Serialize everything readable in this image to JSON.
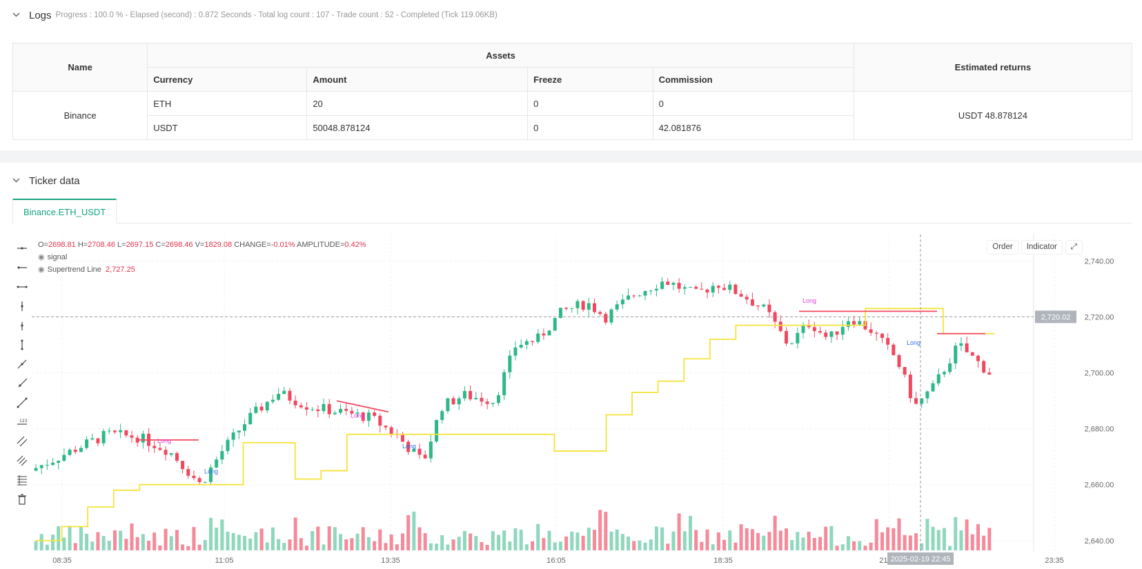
{
  "logs": {
    "title": "Logs",
    "meta": "Progress : 100.0 % - Elapsed (second) : 0.872  Seconds - Total log count : 107 - Trade count : 52 - Completed (Tick 119.06KB)"
  },
  "assets_table": {
    "headers": {
      "name": "Name",
      "assets": "Assets",
      "estimated": "Estimated returns",
      "currency": "Currency",
      "amount": "Amount",
      "freeze": "Freeze",
      "commission": "Commission"
    },
    "exchange": "Binance",
    "rows": [
      {
        "currency": "ETH",
        "amount": "20",
        "freeze": "0",
        "commission": "0"
      },
      {
        "currency": "USDT",
        "amount": "50048.878124",
        "freeze": "0",
        "commission": "42.081876"
      }
    ],
    "estimated_returns": "USDT 48.878124"
  },
  "ticker": {
    "title": "Ticker data",
    "tab": "Binance.ETH_USDT"
  },
  "chart": {
    "legend": {
      "ohlc_prefix": [
        "O=",
        "H=",
        "L=",
        "C=",
        "V=",
        "CHANGE=",
        "AMPLITUDE="
      ],
      "ohlc_values": [
        "2698.81",
        "2708.46",
        "2697.15",
        "2698.46",
        "1829.08",
        "-0.01%",
        "0.42%"
      ],
      "signal": "signal",
      "supertrend_label": "Supertrend Line",
      "supertrend_value": "2,727.25"
    },
    "buttons": {
      "order": "Order",
      "indicator": "Indicator"
    },
    "price_ticks": [
      "2,740.00",
      "2,720.00",
      "2,700.00",
      "2,680.00",
      "2,660.00",
      "2,640.00"
    ],
    "current_price": "2,720.02",
    "time_ticks": [
      "08:35",
      "11:05",
      "13:35",
      "16:05",
      "18:35",
      "21:05",
      "23:35"
    ],
    "crosshair_time": "2025-02-19 22:45",
    "long_label": "Long",
    "colors": {
      "up": "#2eb887",
      "down": "#f0485f",
      "supertrend_up": "#f5e33a",
      "supertrend_down": "#f0485f"
    }
  },
  "chart_data": {
    "type": "line",
    "title": "",
    "series": [
      {
        "name": "Supertrend Line",
        "values": [
          2640,
          2645,
          2652,
          2658,
          2660,
          2660,
          2660,
          2660,
          2675,
          2675,
          2662,
          2665,
          2678,
          2678,
          2678,
          2678,
          2678,
          2678,
          2678,
          2678,
          2672,
          2672,
          2685,
          2693,
          2697,
          2705,
          2712,
          2717,
          2717,
          2717,
          2717,
          2717,
          2723,
          2723,
          2723,
          2714,
          2714,
          2714
        ]
      }
    ],
    "ylim": [
      2636,
      2747
    ]
  }
}
